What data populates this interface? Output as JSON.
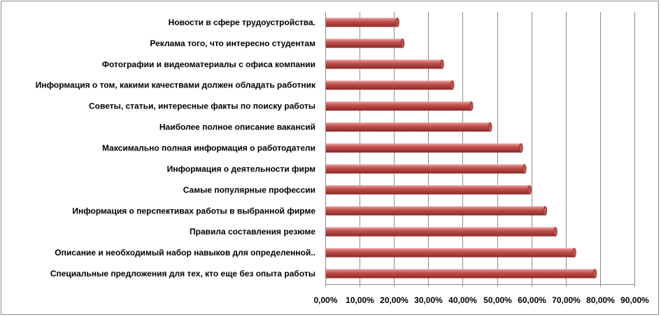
{
  "chart_data": {
    "type": "bar",
    "orientation": "horizontal",
    "title": "",
    "xlabel": "",
    "ylabel": "",
    "xlim": [
      0,
      0.9
    ],
    "grid": "vertical",
    "legend": "none",
    "bar_color": "#c0504d",
    "bar_highlight": "#e8a3a1",
    "bar_shade": "#8b2a27",
    "x_ticks": [
      "0,00%",
      "10,00%",
      "20,00%",
      "30,00%",
      "40,00%",
      "50,00%",
      "60,00%",
      "70,00%",
      "80,00%",
      "90,00%"
    ],
    "categories": [
      "Новости в сфере трудоустройства.",
      "Реклама того, что интересно студентам",
      "Фотографии и видеоматериалы с офиса компании",
      "Информация о том, какими качествами должен обладать работник",
      "Советы, статьи, интересные факты по поиску работы",
      "Наиболее полное описание вакансий",
      "Максимально полная информация о работодатели",
      "Информация о деятельности фирм",
      "Самые популярные профессии",
      "Информация о перспективах работы в выбранной фирме",
      "Правила составления резюме",
      "Описание и необходимый набор навыков для определенной..",
      "Специальные предложения для тех, кто еще без опыта работы"
    ],
    "values": [
      0.21,
      0.225,
      0.34,
      0.37,
      0.425,
      0.48,
      0.57,
      0.58,
      0.595,
      0.64,
      0.67,
      0.725,
      0.785
    ]
  }
}
